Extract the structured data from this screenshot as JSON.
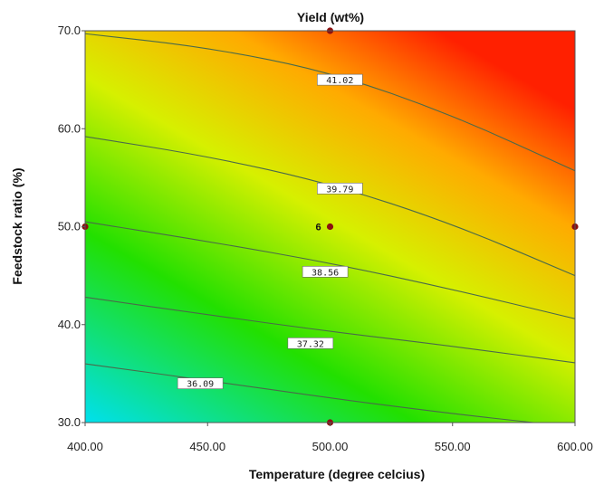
{
  "chart_data": {
    "type": "heatmap",
    "title": "Yield (wt%)",
    "xlabel": "Temperature (degree celcius)",
    "ylabel": "Feedstock ratio (%)",
    "xlim": [
      400,
      600
    ],
    "ylim": [
      30,
      70
    ],
    "x_ticks": [
      "400.00",
      "450.00",
      "500.00",
      "550.00",
      "600.00"
    ],
    "y_ticks": [
      "30.0",
      "40.0",
      "50.0",
      "60.0",
      "70.0"
    ],
    "colormap": [
      "#00e0ee",
      "#22e000",
      "#d6f000",
      "#ffaa00",
      "#ff2000"
    ],
    "contours": [
      {
        "label": "36.09",
        "value": 36.09,
        "points": [
          [
            400,
            36.0
          ],
          [
            450,
            34.3
          ],
          [
            500,
            32.5
          ],
          [
            550,
            30.9
          ],
          [
            583,
            30.0
          ]
        ],
        "label_at": [
          447,
          34.0
        ]
      },
      {
        "label": "37.32",
        "value": 37.32,
        "points": [
          [
            400,
            42.8
          ],
          [
            450,
            41.0
          ],
          [
            500,
            39.3
          ],
          [
            550,
            37.8
          ],
          [
            600,
            36.1
          ]
        ],
        "label_at": [
          492,
          38.1
        ]
      },
      {
        "label": "38.56",
        "value": 38.56,
        "points": [
          [
            400,
            50.5
          ],
          [
            450,
            48.5
          ],
          [
            500,
            46.3
          ],
          [
            550,
            43.6
          ],
          [
            600,
            40.6
          ]
        ],
        "label_at": [
          498,
          45.4
        ]
      },
      {
        "label": "39.79",
        "value": 39.79,
        "points": [
          [
            400,
            59.2
          ],
          [
            450,
            57.2
          ],
          [
            500,
            54.4
          ],
          [
            550,
            50.3
          ],
          [
            600,
            45.0
          ]
        ],
        "label_at": [
          504,
          53.9
        ]
      },
      {
        "label": "41.02",
        "value": 41.02,
        "points": [
          [
            400,
            69.7
          ],
          [
            450,
            68.3
          ],
          [
            500,
            65.8
          ],
          [
            550,
            61.4
          ],
          [
            600,
            55.7
          ]
        ],
        "label_at": [
          504,
          65.0
        ]
      }
    ],
    "design_points": [
      {
        "x": 500,
        "y": 70
      },
      {
        "x": 400,
        "y": 50
      },
      {
        "x": 500,
        "y": 50,
        "label": "6"
      },
      {
        "x": 600,
        "y": 50
      },
      {
        "x": 500,
        "y": 30
      }
    ],
    "point_color": "#8b1010"
  }
}
